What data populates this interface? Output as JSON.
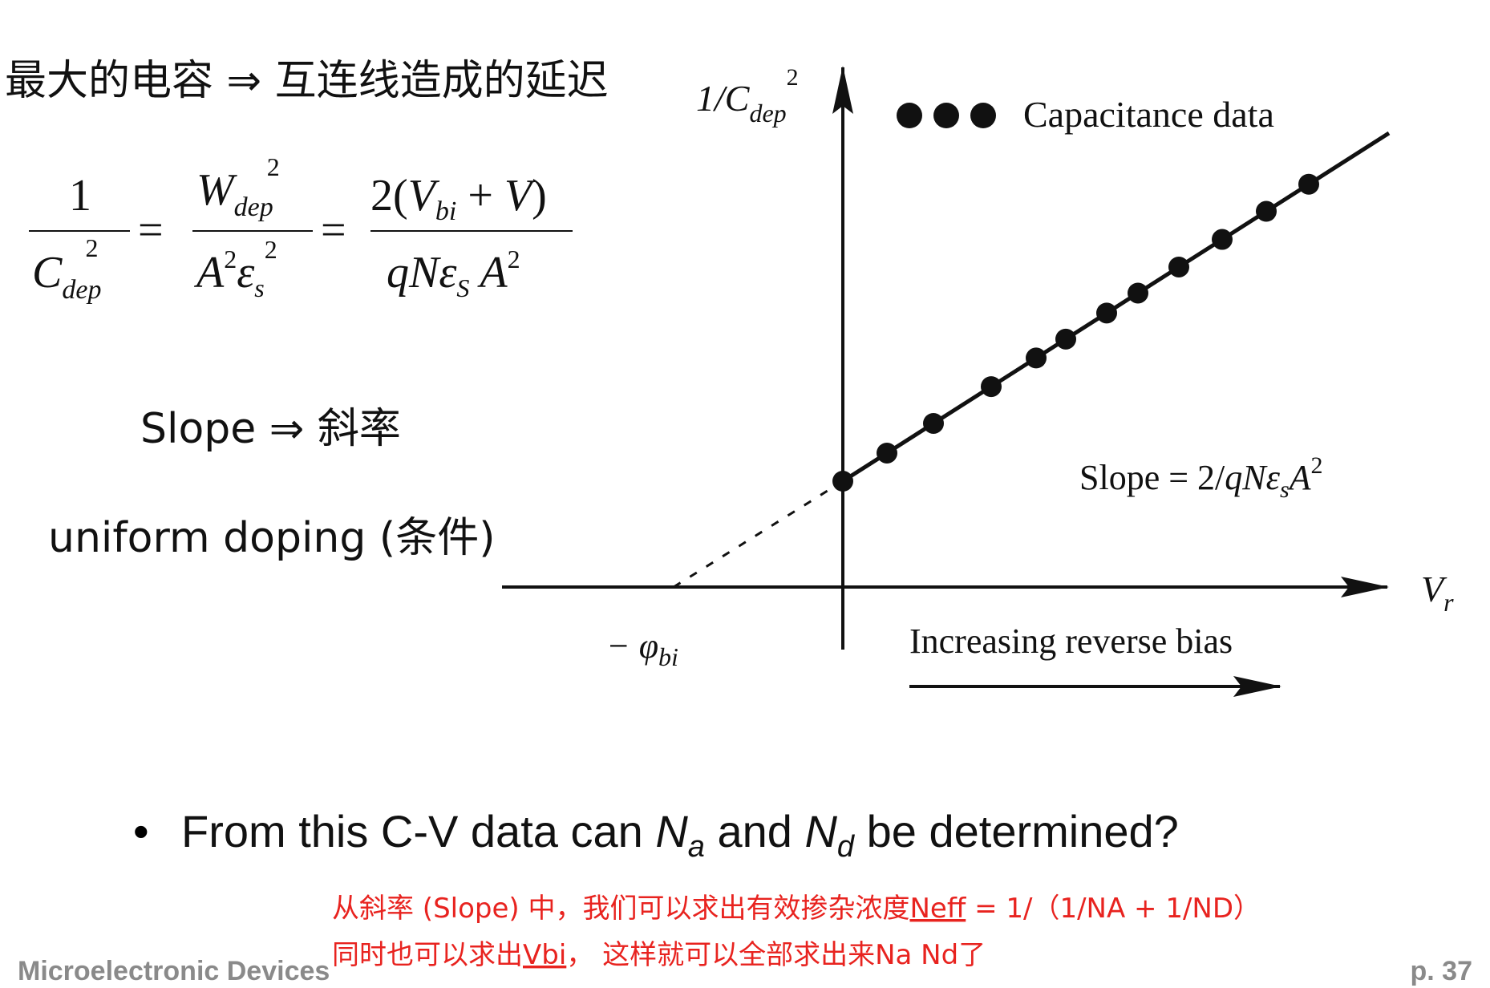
{
  "notes": {
    "line1": "最大的电容 ⇒ 互连线造成的延迟",
    "line2": "Slope ⇒ 斜率",
    "line3": "uniform doping (条件)"
  },
  "equation": {
    "f1_num": "1",
    "f1_den": "C",
    "f1_den_sub": "dep",
    "f1_den_sup": "2",
    "eq1": "=",
    "f2_num": "W",
    "f2_num_sub": "dep",
    "f2_num_sup": "2",
    "f2_den_a": "A",
    "f2_den_a_sup": "2",
    "f2_den_e": "ε",
    "f2_den_e_sub": "s",
    "f2_den_e_sup": "2",
    "eq2": "=",
    "f3_num_a": "2(",
    "f3_num_v": "V",
    "f3_num_v_sub": "bi",
    "f3_num_b": " + ",
    "f3_num_c": "V",
    "f3_num_d": ")",
    "f3_den_a": "qNε",
    "f3_den_a_sub": "S",
    "f3_den_b": " A",
    "f3_den_b_sup": "2"
  },
  "diagram": {
    "y_label": "1/C",
    "y_label_sub": "dep",
    "y_label_sup": "2",
    "x_label": "V",
    "x_label_sub": "r",
    "intercept": "− φ",
    "intercept_sub": "bi",
    "legend": "Capacitance data",
    "slope_a": "Slope = 2/",
    "slope_b": "qNε",
    "slope_b_sub": "s",
    "slope_c": "A",
    "slope_c_sup": "2",
    "arrow_label": "Increasing reverse bias"
  },
  "bullet": {
    "a": "From this C-V data can ",
    "n1": "N",
    "n1_sub": "a",
    "b": " and ",
    "n2": "N",
    "n2_sub": "d",
    "c": " be determined?"
  },
  "red_notes": {
    "line1_a": "从斜率 (Slope) 中，我们可以求出有效掺杂浓度",
    "line1_b": "Neff",
    "line1_c": " = 1/（1/NA + 1/ND）",
    "line2_a": "同时也可以求出",
    "line2_b": "Vbi",
    "line2_c": "，  这样就可以全部求出来Na Nd了"
  },
  "footer": {
    "left": "Microelectronic Devices",
    "right": "p. 37"
  }
}
